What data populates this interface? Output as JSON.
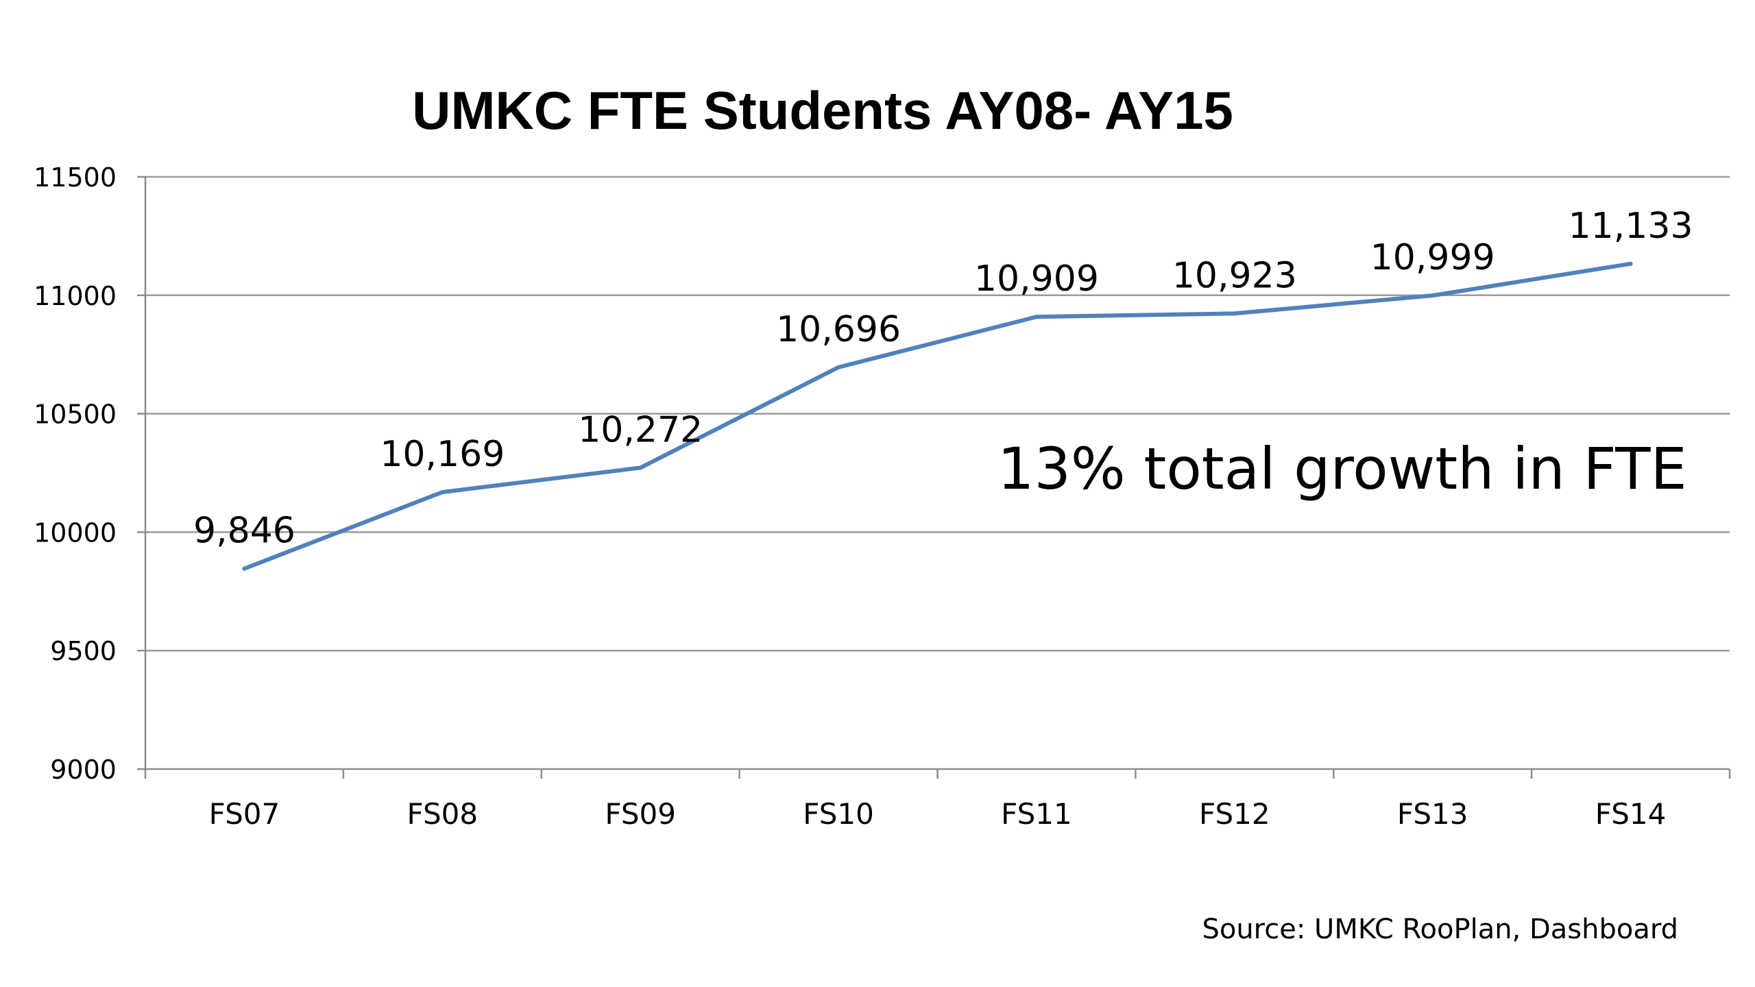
{
  "chart_data": {
    "type": "line",
    "title": "UMKC FTE Students AY08- AY15",
    "xlabel": "",
    "ylabel": "",
    "categories": [
      "FS07",
      "FS08",
      "FS09",
      "FS10",
      "FS11",
      "FS12",
      "FS13",
      "FS14"
    ],
    "series": [
      {
        "values": [
          9846,
          10169,
          10272,
          10696,
          10909,
          10923,
          10999,
          11133
        ],
        "data_labels": [
          "9,846",
          "10,169",
          "10,272",
          "10,696",
          "10,909",
          "10,923",
          "10,999",
          "11,133"
        ],
        "color": "#4F81BD"
      }
    ],
    "ylim": [
      9000,
      11500
    ],
    "yticks": [
      9000,
      9500,
      10000,
      10500,
      11000,
      11500
    ],
    "grid": true,
    "legend": "none",
    "annotation": "13% total growth in FTE",
    "source": "Source: UMKC RooPlan, Dashboard"
  },
  "colors": {
    "line": "#4F81BD",
    "grid": "#9A9A9A",
    "axis": "#8C8C8C",
    "text": "#000000",
    "background": "#FFFFFF"
  }
}
